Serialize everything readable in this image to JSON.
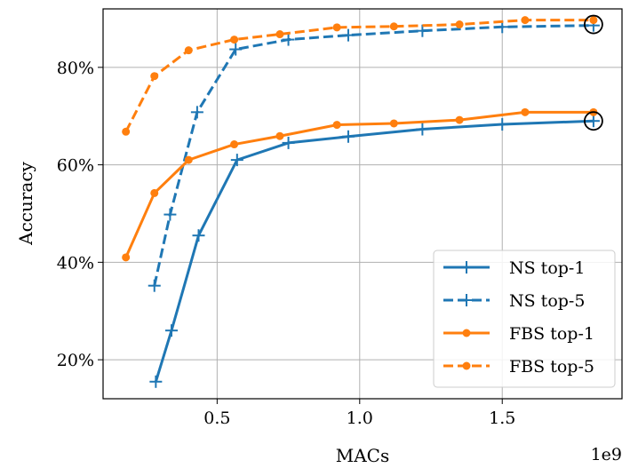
{
  "chart_data": {
    "type": "line",
    "title": "",
    "xlabel": "MACs",
    "ylabel": "Accuracy",
    "x_offset_label": "1e9",
    "xlim": [
      0.1,
      1.92
    ],
    "ylim": [
      12,
      92
    ],
    "xticks": [
      {
        "value": 0.5,
        "label": "0.5"
      },
      {
        "value": 1.0,
        "label": "1.0"
      },
      {
        "value": 1.5,
        "label": "1.5"
      }
    ],
    "yticks": [
      {
        "value": 20,
        "label": "20%"
      },
      {
        "value": 40,
        "label": "40%"
      },
      {
        "value": 60,
        "label": "60%"
      },
      {
        "value": 80,
        "label": "80%"
      }
    ],
    "grid": true,
    "legend_position": "lower-right",
    "series": [
      {
        "name": "NS top-1",
        "color": "#1f77b4",
        "dash": "solid",
        "marker": "plus",
        "x": [
          0.285,
          0.34,
          0.435,
          0.57,
          0.75,
          0.96,
          1.22,
          1.5,
          1.82
        ],
        "y": [
          15.5,
          26,
          45.5,
          61,
          64.5,
          65.8,
          67.3,
          68.3,
          69
        ]
      },
      {
        "name": "NS top-5",
        "color": "#1f77b4",
        "dash": "dashed",
        "marker": "plus",
        "x": [
          0.28,
          0.335,
          0.43,
          0.565,
          0.75,
          0.96,
          1.22,
          1.5,
          1.82
        ],
        "y": [
          35.2,
          49.8,
          70.8,
          83.7,
          85.7,
          86.6,
          87.5,
          88.3,
          88.6
        ]
      },
      {
        "name": "FBS top-1",
        "color": "#ff7f0e",
        "dash": "solid",
        "marker": "dot",
        "x": [
          0.18,
          0.28,
          0.4,
          0.56,
          0.72,
          0.92,
          1.12,
          1.35,
          1.58,
          1.82
        ],
        "y": [
          41,
          54.2,
          61,
          64.2,
          65.9,
          68.2,
          68.5,
          69.2,
          70.8,
          70.8
        ]
      },
      {
        "name": "FBS top-5",
        "color": "#ff7f0e",
        "dash": "dashed",
        "marker": "dot",
        "x": [
          0.18,
          0.28,
          0.4,
          0.56,
          0.72,
          0.92,
          1.12,
          1.35,
          1.58,
          1.82
        ],
        "y": [
          66.8,
          78.2,
          83.5,
          85.7,
          86.8,
          88.2,
          88.4,
          88.8,
          89.7,
          89.7
        ]
      }
    ],
    "annotations": [
      {
        "type": "circle",
        "x": 1.82,
        "y": 88.8
      },
      {
        "type": "circle",
        "x": 1.82,
        "y": 69
      }
    ]
  }
}
